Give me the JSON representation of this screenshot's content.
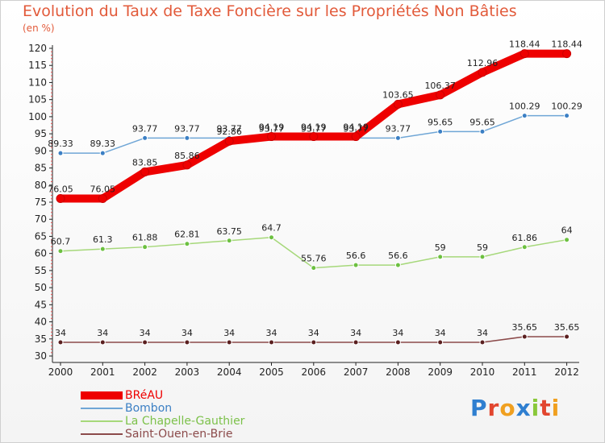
{
  "title": "Evolution du Taux de Taxe Foncière sur les Propriétés Non Bâties",
  "unit": "(en %)",
  "logo": {
    "text": "Proxiti",
    "letter_colors": [
      "#2f7fd0",
      "#e2462f",
      "#f0a020",
      "#2f7fd0",
      "#8ac83a",
      "#e2462f",
      "#f0a020"
    ]
  },
  "chart_data": {
    "type": "line",
    "title": "Evolution du Taux de Taxe Foncière sur les Propriétés Non Bâties",
    "ylabel": "(en %)",
    "ylim": [
      30,
      120
    ],
    "yticks": [
      30,
      35,
      40,
      45,
      50,
      55,
      60,
      65,
      70,
      75,
      80,
      85,
      90,
      95,
      100,
      105,
      110,
      115,
      120
    ],
    "categories": [
      "2000",
      "2001",
      "2002",
      "2003",
      "2004",
      "2005",
      "2006",
      "2007",
      "2008",
      "2009",
      "2010",
      "2011",
      "2012"
    ],
    "series": [
      {
        "name": "BRéAU",
        "color": "#ee0000",
        "marker": "#ee0000",
        "thick": true,
        "values": [
          76.05,
          76.05,
          83.85,
          85.86,
          92.86,
          94.19,
          94.19,
          94.19,
          103.65,
          106.37,
          112.96,
          118.44,
          118.44
        ],
        "labels": [
          "76.05",
          "76.05",
          "83.85",
          "85.86",
          "92.86",
          "94.19",
          "94.19",
          "94.19",
          "103.65",
          "106.37",
          "112.96",
          "118.44",
          "118.44"
        ]
      },
      {
        "name": "Bombon",
        "color": "#6fa6d6",
        "marker": "#3b7fc4",
        "thick": false,
        "values": [
          89.33,
          89.33,
          93.77,
          93.77,
          93.77,
          93.77,
          93.77,
          93.77,
          93.77,
          95.65,
          95.65,
          100.29,
          100.29
        ],
        "labels": [
          "89.33",
          "89.33",
          "93.77",
          "93.77",
          "93.77",
          "93.77",
          "93.77",
          "93.77",
          "93.77",
          "95.65",
          "95.65",
          "100.29",
          "100.29"
        ]
      },
      {
        "name": "La Chapelle-Gauthier",
        "color": "#a6d87a",
        "marker": "#6cc040",
        "thick": false,
        "values": [
          60.7,
          61.3,
          61.88,
          62.81,
          63.75,
          64.7,
          55.76,
          56.6,
          56.6,
          59,
          59,
          61.86,
          64
        ],
        "labels": [
          "60.7",
          "61.3",
          "61.88",
          "62.81",
          "63.75",
          "64.7",
          "55.76",
          "56.6",
          "56.6",
          "59",
          "59",
          "61.86",
          "64"
        ]
      },
      {
        "name": "Saint-Ouen-en-Brie",
        "color": "#8b4a4a",
        "marker": "#5a1f1f",
        "thick": false,
        "values": [
          34,
          34,
          34,
          34,
          34,
          34,
          34,
          34,
          34,
          34,
          34,
          35.65,
          35.65
        ],
        "labels": [
          "34",
          "34",
          "34",
          "34",
          "34",
          "34",
          "34",
          "34",
          "34",
          "34",
          "34",
          "35.65",
          "35.65"
        ]
      }
    ],
    "legend_position": "bottom-left",
    "grid": false
  }
}
